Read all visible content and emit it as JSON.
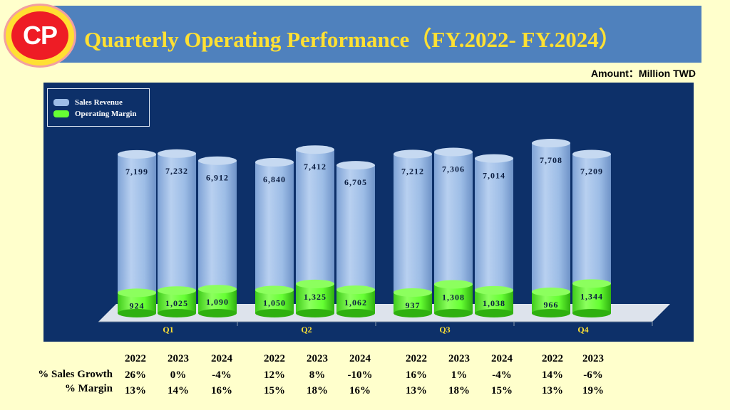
{
  "header": {
    "logo_text": "CP",
    "title": "Quarterly Operating Performance（FY.2022- FY.2024）",
    "unit": "Amount：Million TWD"
  },
  "colors": {
    "header_bar": "#4f81bd",
    "title_text": "#ffe033",
    "plot_bg": "#0d3069",
    "revenue": "#9dbde6",
    "margin": "#66ff33",
    "quarter_label": "#ffe033"
  },
  "chart_data": {
    "type": "bar",
    "style": "stacked-cylinder",
    "legend_position": "top-left",
    "categories": [
      "Q1",
      "Q2",
      "Q3",
      "Q4"
    ],
    "series": [
      {
        "name": "Sales Revenue",
        "values": [
          [
            7199,
            7232,
            6912
          ],
          [
            6840,
            7412,
            6705
          ],
          [
            7212,
            7306,
            7014
          ],
          [
            7708,
            7209
          ]
        ],
        "labels": [
          [
            "7,199",
            "7,232",
            "6,912"
          ],
          [
            "6,840",
            "7,412",
            "6,705"
          ],
          [
            "7,212",
            "7,306",
            "7,014"
          ],
          [
            "7,708",
            "7,209"
          ]
        ]
      },
      {
        "name": "Operating Margin",
        "values": [
          [
            924,
            1025,
            1090
          ],
          [
            1050,
            1325,
            1062
          ],
          [
            937,
            1308,
            1038
          ],
          [
            966,
            1344
          ]
        ],
        "labels": [
          [
            "924",
            "1,025",
            "1,090"
          ],
          [
            "1,050",
            "1,325",
            "1,062"
          ],
          [
            "937",
            "1,308",
            "1,038"
          ],
          [
            "966",
            "1,344"
          ]
        ]
      }
    ],
    "years": [
      [
        "2022",
        "2023",
        "2024"
      ],
      [
        "2022",
        "2023",
        "2024"
      ],
      [
        "2022",
        "2023",
        "2024"
      ],
      [
        "2022",
        "2023"
      ]
    ]
  },
  "stats_table": {
    "row_labels": [
      "% Sales Growth",
      "% Margin"
    ],
    "groups": [
      {
        "years": [
          "2022",
          "2023",
          "2024"
        ],
        "growth": [
          "26%",
          "0%",
          "-4%"
        ],
        "margin": [
          "13%",
          "14%",
          "16%"
        ]
      },
      {
        "years": [
          "2022",
          "2023",
          "2024"
        ],
        "growth": [
          "12%",
          "8%",
          "-10%"
        ],
        "margin": [
          "15%",
          "18%",
          "16%"
        ]
      },
      {
        "years": [
          "2022",
          "2023",
          "2024"
        ],
        "growth": [
          "16%",
          "1%",
          "-4%"
        ],
        "margin": [
          "13%",
          "18%",
          "15%"
        ]
      },
      {
        "years": [
          "2022",
          "2023"
        ],
        "growth": [
          "14%",
          "-6%"
        ],
        "margin": [
          "13%",
          "19%"
        ]
      }
    ]
  }
}
